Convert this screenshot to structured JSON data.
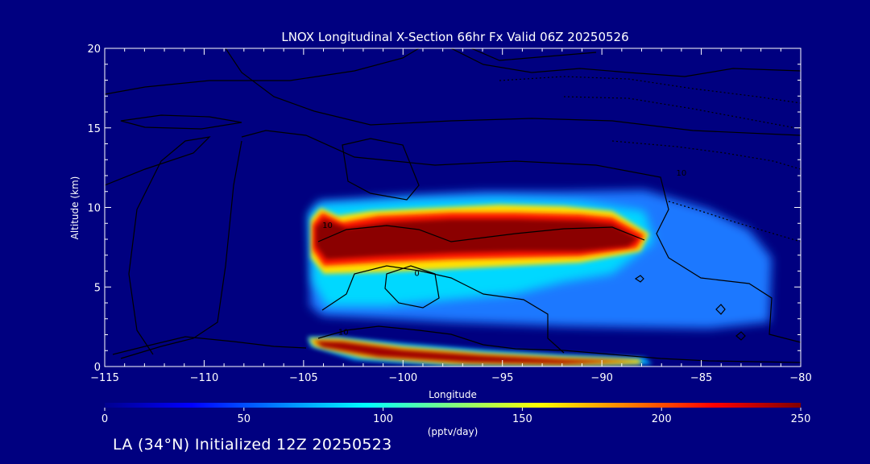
{
  "chart_data": {
    "type": "heatmap",
    "title": "LNOX Longitudinal X-Section 66hr  Fx Valid 06Z 20250526",
    "xlabel": "Longitude",
    "ylabel": "Altitude (km)",
    "xlim": [
      -115,
      -80
    ],
    "ylim": [
      0,
      20
    ],
    "xticks": [
      -115,
      -110,
      -105,
      -100,
      -95,
      -90,
      -85,
      -80
    ],
    "xtick_labels": [
      "−115",
      "−110",
      "−105",
      "−100",
      "−95",
      "−90",
      "−85",
      "−80"
    ],
    "yticks": [
      0,
      5,
      10,
      15,
      20
    ],
    "ytick_labels": [
      "0",
      "5",
      "10",
      "15",
      "20"
    ],
    "colorbar": {
      "label": "(pptv/day)",
      "min": 0,
      "max": 250,
      "ticks": [
        0,
        50,
        100,
        150,
        200,
        250
      ],
      "tick_labels": [
        "0",
        "50",
        "100",
        "150",
        "200",
        "250"
      ],
      "colormap": [
        "#00008f",
        "#0000ff",
        "#00ffff",
        "#ffff00",
        "#ff0000",
        "#800000"
      ]
    },
    "contour_labels": [
      {
        "text": "10",
        "lon": -103.8,
        "alt": 8.7
      },
      {
        "text": "0",
        "lon": -99.3,
        "alt": 5.7
      },
      {
        "text": "10",
        "lon": -103.0,
        "alt": 2.0
      },
      {
        "text": "10",
        "lon": -86.0,
        "alt": 12.0
      }
    ],
    "regions": [
      {
        "name": "upper band",
        "lon": [
          -105,
          -82
        ],
        "alt": [
          3.5,
          10.5
        ],
        "peak_pptv_day": 250
      },
      {
        "name": "surface band",
        "lon": [
          -104.5,
          -88
        ],
        "alt": [
          0,
          1.8
        ],
        "peak_pptv_day": 250
      }
    ]
  },
  "footer": "LA (34°N) Initialized 12Z 20250523"
}
